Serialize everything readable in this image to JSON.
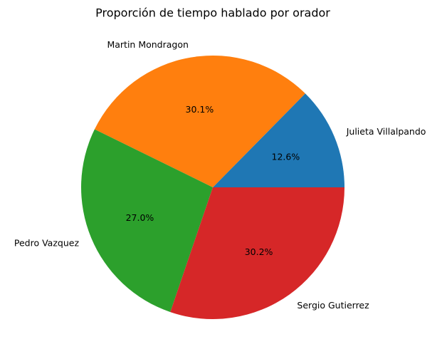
{
  "chart_data": {
    "type": "pie",
    "title": "Proporción de tiempo hablado por orador",
    "labels": [
      "Julieta Villalpando",
      "Martin Mondragon",
      "Pedro Vazquez",
      "Sergio Gutierrez"
    ],
    "values": [
      12.6,
      30.1,
      27.0,
      30.2
    ],
    "percent_labels": [
      "12.6%",
      "30.1%",
      "27.0%",
      "30.2%"
    ],
    "colors": [
      "#1f77b4",
      "#ff7f0e",
      "#2ca02c",
      "#d62728"
    ],
    "start_angle_deg": 0,
    "direction": "counterclockwise",
    "legend": "none"
  }
}
